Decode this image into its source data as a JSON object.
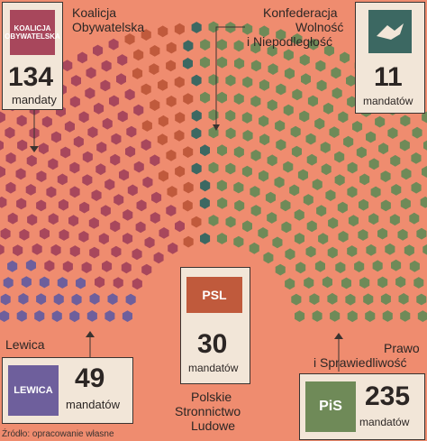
{
  "chart_data": {
    "type": "hemicycle",
    "total_seats": 460,
    "series": [
      {
        "name": "Koalicja Obywatelska",
        "seats": 134,
        "seats_label": "134",
        "unit": "mandaty",
        "color": "#a8475c",
        "logo": "KOALICJA OBYWATELSKA"
      },
      {
        "name": "Konfederacja Wolność i Niepodległość",
        "seats": 11,
        "seats_label": "11",
        "unit": "mandatów",
        "color": "#3c6862",
        "logo": ""
      },
      {
        "name": "Lewica",
        "seats": 49,
        "seats_label": "49",
        "unit": "mandatów",
        "color": "#6e5f9c",
        "logo": "LEWICA"
      },
      {
        "name": "Polskie Stronnictwo Ludowe",
        "seats": 30,
        "seats_label": "30",
        "unit": "mandatów",
        "color": "#c05a3c",
        "logo": "PSL"
      },
      {
        "name": "Prawo i Sprawiedliwość",
        "seats": 235,
        "seats_label": "235",
        "unit": "mandatów",
        "color": "#6f8a58",
        "logo": "PiS"
      }
    ]
  },
  "labels": {
    "ko_line1": "Koalicja",
    "ko_line2": "Obywatelska",
    "konf_line1": "Konfederacja",
    "konf_line2": "Wolność",
    "konf_line3": "i Niepodległość",
    "lewica": "Lewica",
    "psl_line1": "Polskie",
    "psl_line2": "Stronnictwo",
    "psl_line3": "Ludowe",
    "pis_line1": "Prawo",
    "pis_line2": "i Sprawiedliwość"
  },
  "source": "Źródło: opracowanie własne"
}
